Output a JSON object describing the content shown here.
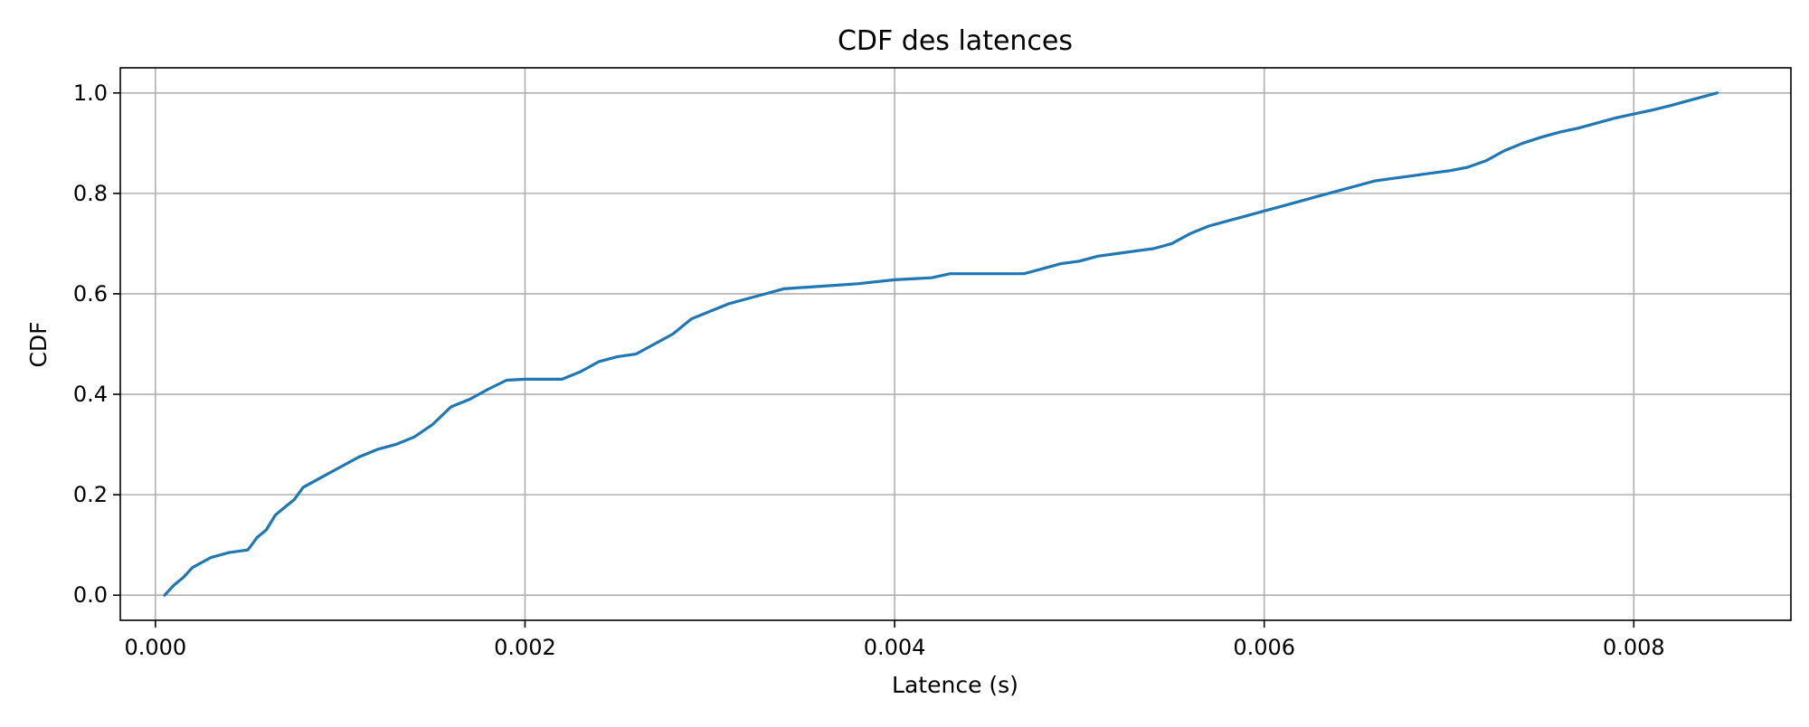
{
  "chart_data": {
    "type": "line",
    "title": "CDF des latences",
    "xlabel": "Latence (s)",
    "ylabel": "CDF",
    "xlim": [
      -0.00019,
      0.00885
    ],
    "ylim": [
      -0.05,
      1.05
    ],
    "x_ticks": [
      0.0,
      0.002,
      0.004,
      0.006,
      0.008
    ],
    "x_tick_labels": [
      "0.000",
      "0.002",
      "0.004",
      "0.006",
      "0.008"
    ],
    "y_ticks": [
      0.0,
      0.2,
      0.4,
      0.6,
      0.8,
      1.0
    ],
    "y_tick_labels": [
      "0.0",
      "0.2",
      "0.4",
      "0.6",
      "0.8",
      "1.0"
    ],
    "grid": true,
    "line_color": "#1f77b4",
    "grid_color": "#b0b0b0",
    "series": [
      {
        "x": [
          5e-05,
          0.0001,
          0.00015,
          0.0002,
          0.00025,
          0.0003,
          0.0004,
          0.0005,
          0.00055,
          0.0006,
          0.00065,
          0.0007,
          0.00075,
          0.0008,
          0.00085,
          0.0009,
          0.001,
          0.0011,
          0.0012,
          0.0013,
          0.0014,
          0.0015,
          0.0016,
          0.0017,
          0.0018,
          0.0019,
          0.002,
          0.0022,
          0.0023,
          0.0024,
          0.0025,
          0.0026,
          0.0027,
          0.0028,
          0.0029,
          0.003,
          0.0031,
          0.0032,
          0.0033,
          0.0034,
          0.0036,
          0.0038,
          0.004,
          0.0042,
          0.0043,
          0.0045,
          0.0047,
          0.0048,
          0.0049,
          0.005,
          0.0051,
          0.0052,
          0.0053,
          0.0054,
          0.0055,
          0.0056,
          0.0057,
          0.0058,
          0.0059,
          0.006,
          0.0061,
          0.0062,
          0.0063,
          0.0064,
          0.0065,
          0.0066,
          0.0067,
          0.0068,
          0.0069,
          0.007,
          0.0071,
          0.0072,
          0.0073,
          0.0074,
          0.0075,
          0.0076,
          0.0077,
          0.0078,
          0.0079,
          0.008,
          0.0081,
          0.0082,
          0.0083,
          0.00845
        ],
        "y": [
          0.0,
          0.02,
          0.035,
          0.055,
          0.065,
          0.075,
          0.085,
          0.09,
          0.115,
          0.13,
          0.16,
          0.175,
          0.19,
          0.215,
          0.225,
          0.235,
          0.255,
          0.275,
          0.29,
          0.3,
          0.315,
          0.34,
          0.375,
          0.39,
          0.41,
          0.428,
          0.43,
          0.43,
          0.445,
          0.465,
          0.475,
          0.48,
          0.5,
          0.52,
          0.55,
          0.565,
          0.58,
          0.59,
          0.6,
          0.61,
          0.615,
          0.62,
          0.628,
          0.632,
          0.64,
          0.64,
          0.64,
          0.65,
          0.66,
          0.665,
          0.675,
          0.68,
          0.685,
          0.69,
          0.7,
          0.72,
          0.735,
          0.745,
          0.755,
          0.765,
          0.775,
          0.785,
          0.795,
          0.805,
          0.815,
          0.825,
          0.83,
          0.835,
          0.84,
          0.845,
          0.852,
          0.865,
          0.885,
          0.9,
          0.912,
          0.922,
          0.93,
          0.94,
          0.95,
          0.958,
          0.966,
          0.975,
          0.985,
          1.0
        ]
      }
    ]
  }
}
